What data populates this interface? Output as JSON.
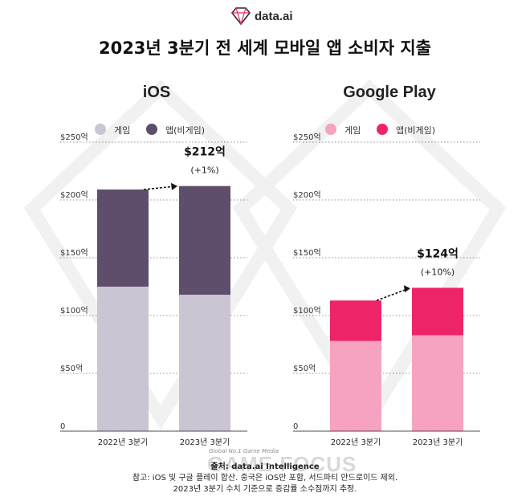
{
  "header": {
    "brand": "data.ai"
  },
  "title": "2023년 3분기 전 세계 모바일 앱 소비자 지출",
  "colors": {
    "ios_game": "#cbc4d2",
    "ios_app": "#5e4e6b",
    "gp_game": "#f5a3c0",
    "gp_app": "#ee2468",
    "grid": "#222222"
  },
  "chart_data": [
    {
      "type": "bar",
      "stacked": true,
      "title": "iOS",
      "categories": [
        "2022년 3분기",
        "2023년 3분기"
      ],
      "series": [
        {
          "name": "게임",
          "values": [
            125,
            118
          ]
        },
        {
          "name": "앱(비게임)",
          "values": [
            84,
            94
          ]
        }
      ],
      "ylim": [
        0,
        250
      ],
      "yticks": [
        "0",
        "$50억",
        "$100억",
        "$150억",
        "$200억",
        "$250억"
      ],
      "grid": true,
      "legend": "top-left",
      "annotation": {
        "value": "$212억",
        "change": "(+1%)"
      }
    },
    {
      "type": "bar",
      "stacked": true,
      "title": "Google Play",
      "categories": [
        "2022년 3분기",
        "2023년 3분기"
      ],
      "series": [
        {
          "name": "게임",
          "values": [
            78,
            83
          ]
        },
        {
          "name": "앱(비게임)",
          "values": [
            35,
            41
          ]
        }
      ],
      "ylim": [
        0,
        250
      ],
      "yticks": [
        "0",
        "$50억",
        "$100억",
        "$150억",
        "$200억",
        "$250억"
      ],
      "grid": true,
      "legend": "top-left",
      "annotation": {
        "value": "$124억",
        "change": "(+10%)"
      }
    }
  ],
  "footer": {
    "source": "출처: data.ai Intelligence",
    "note1": "참고: iOS 및 구글 플레이 합산. 중국은 iOS만 포함, 서드파티 안드로이드 제외.",
    "note2": "2023년 3분기 수치 기준으로 증감률 소수점까지 추정.",
    "watermark": "GAME FOCUS",
    "watermark_sub": "Global No.1 Game Media"
  }
}
